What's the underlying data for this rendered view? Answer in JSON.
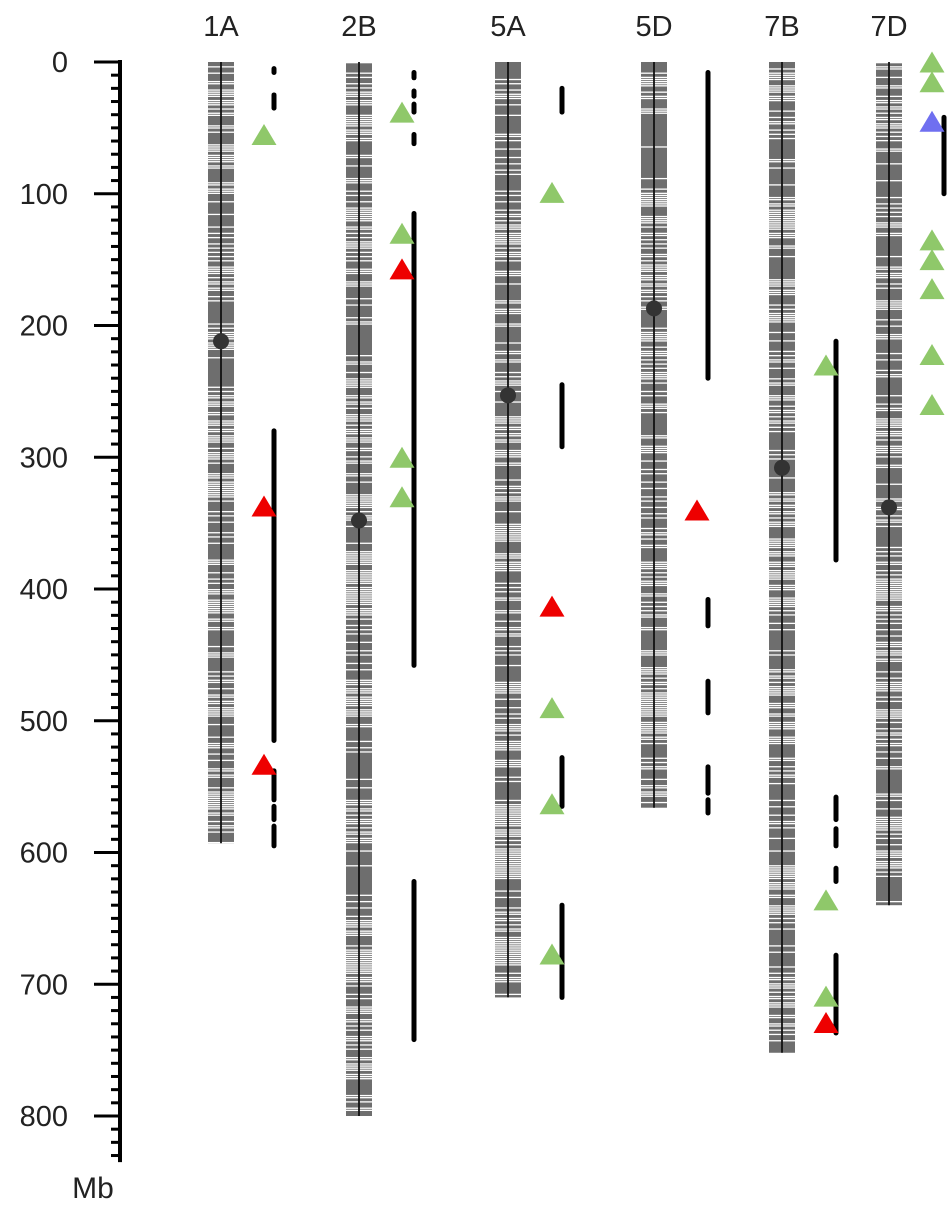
{
  "chart_data": {
    "type": "chromosome-map",
    "unit_label": "Mb",
    "y_axis": {
      "min": 0,
      "max": 835,
      "tick_labels": [
        "0",
        "100",
        "200",
        "300",
        "400",
        "500",
        "600",
        "700",
        "800"
      ],
      "tick_values": [
        0,
        100,
        200,
        300,
        400,
        500,
        600,
        700,
        800
      ],
      "minor_step": 10
    },
    "colors": {
      "chromosome": "#6e6e6e",
      "centromere": "#333333",
      "interval": "#000000",
      "green_marker": "#8fc86a",
      "red_marker": "#ee0000",
      "blue_marker": "#6f6ff0"
    },
    "chromosomes": [
      {
        "name": "1A",
        "length": 593,
        "centromere": 212,
        "gaps": [
          [
            20,
            40
          ],
          [
            60,
            100
          ],
          [
            130,
            160
          ],
          [
            205,
            220
          ],
          [
            245,
            300
          ],
          [
            310,
            330
          ],
          [
            395,
            425
          ],
          [
            480,
            520
          ],
          [
            555,
            585
          ]
        ],
        "intervals": [
          [
            5,
            8
          ],
          [
            25,
            35
          ],
          [
            280,
            515
          ],
          [
            538,
            560
          ],
          [
            565,
            575
          ],
          [
            580,
            595
          ]
        ],
        "markers": [
          {
            "pos": 55,
            "color": "green"
          },
          {
            "pos": 337,
            "color": "red"
          },
          {
            "pos": 533,
            "color": "red"
          }
        ]
      },
      {
        "name": "2B",
        "length": 800,
        "centromere": 348,
        "gaps": [
          [
            5,
            60
          ],
          [
            110,
            160
          ],
          [
            240,
            300
          ],
          [
            330,
            420
          ],
          [
            470,
            500
          ],
          [
            560,
            600
          ],
          [
            650,
            700
          ],
          [
            740,
            790
          ]
        ],
        "intervals": [
          [
            8,
            12
          ],
          [
            22,
            26
          ],
          [
            32,
            38
          ],
          [
            55,
            62
          ],
          [
            115,
            458
          ],
          [
            622,
            742
          ]
        ],
        "markers": [
          {
            "pos": 38,
            "color": "green"
          },
          {
            "pos": 130,
            "color": "green"
          },
          {
            "pos": 157,
            "color": "red"
          },
          {
            "pos": 300,
            "color": "green"
          },
          {
            "pos": 330,
            "color": "green"
          }
        ]
      },
      {
        "name": "5A",
        "length": 710,
        "centromere": 253,
        "gaps": [
          [
            110,
            160
          ],
          [
            220,
            250
          ],
          [
            270,
            300
          ],
          [
            350,
            430
          ],
          [
            470,
            520
          ],
          [
            560,
            620
          ],
          [
            650,
            700
          ]
        ],
        "intervals": [
          [
            20,
            38
          ],
          [
            245,
            292
          ],
          [
            528,
            565
          ],
          [
            640,
            710
          ]
        ],
        "markers": [
          {
            "pos": 99,
            "color": "green"
          },
          {
            "pos": 413,
            "color": "red"
          },
          {
            "pos": 490,
            "color": "green"
          },
          {
            "pos": 563,
            "color": "green"
          },
          {
            "pos": 677,
            "color": "green"
          }
        ]
      },
      {
        "name": "5D",
        "length": 566,
        "centromere": 187,
        "gaps": [
          [
            10,
            40
          ],
          [
            80,
            120
          ],
          [
            150,
            185
          ],
          [
            200,
            240
          ],
          [
            290,
            320
          ],
          [
            380,
            410
          ],
          [
            460,
            510
          ],
          [
            540,
            560
          ]
        ],
        "intervals": [
          [
            8,
            240
          ],
          [
            408,
            428
          ],
          [
            470,
            494
          ],
          [
            535,
            555
          ],
          [
            560,
            570
          ]
        ],
        "markers": [
          {
            "pos": 340,
            "color": "red"
          }
        ]
      },
      {
        "name": "7B",
        "length": 752,
        "centromere": 308,
        "gaps": [
          [
            5,
            30
          ],
          [
            100,
            130
          ],
          [
            160,
            200
          ],
          [
            250,
            270
          ],
          [
            330,
            420
          ],
          [
            470,
            520
          ],
          [
            610,
            660
          ],
          [
            700,
            740
          ]
        ],
        "intervals": [
          [
            212,
            378
          ],
          [
            558,
            575
          ],
          [
            582,
            595
          ],
          [
            612,
            622
          ],
          [
            678,
            737
          ]
        ],
        "markers": [
          {
            "pos": 230,
            "color": "green"
          },
          {
            "pos": 636,
            "color": "green"
          },
          {
            "pos": 709,
            "color": "green"
          },
          {
            "pos": 729,
            "color": "red"
          }
        ]
      },
      {
        "name": "7D",
        "length": 640,
        "centromere": 338,
        "gaps": [
          [
            20,
            60
          ],
          [
            100,
            130
          ],
          [
            180,
            210
          ],
          [
            260,
            300
          ],
          [
            380,
            420
          ],
          [
            470,
            520
          ],
          [
            560,
            610
          ]
        ],
        "intervals": [
          [
            42,
            100
          ]
        ],
        "markers": [
          {
            "pos": 0,
            "color": "green"
          },
          {
            "pos": 15,
            "color": "green"
          },
          {
            "pos": 45,
            "color": "blue"
          },
          {
            "pos": 135,
            "color": "green"
          },
          {
            "pos": 150,
            "color": "green"
          },
          {
            "pos": 172,
            "color": "green"
          },
          {
            "pos": 222,
            "color": "green"
          },
          {
            "pos": 260,
            "color": "green"
          }
        ]
      }
    ]
  }
}
